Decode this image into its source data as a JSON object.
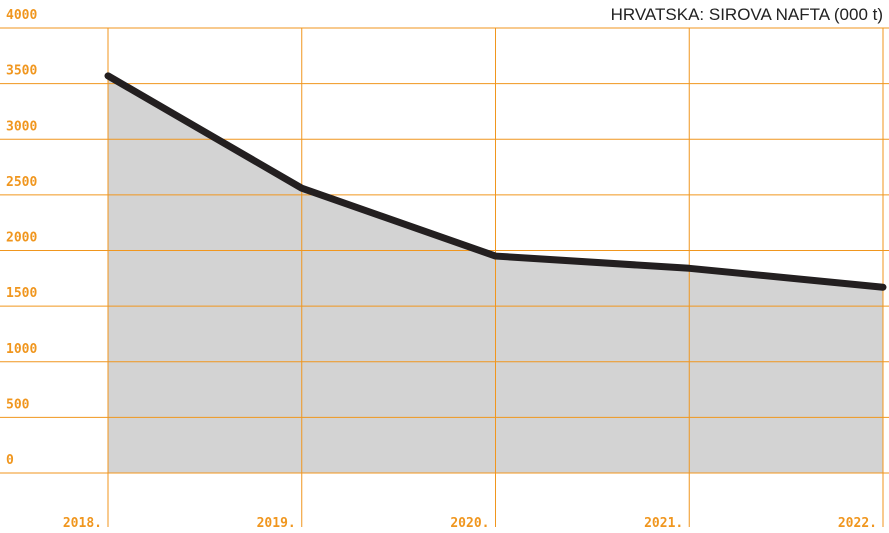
{
  "chart_data": {
    "type": "area",
    "title": "HRVATSKA: SIROVA NAFTA (000 t)",
    "categories": [
      "2018.",
      "2019.",
      "2020.",
      "2021.",
      "2022."
    ],
    "values": [
      3570,
      2560,
      1950,
      1840,
      1670
    ],
    "color": "#231f20",
    "fill": "#d3d3d3",
    "grid_color": "#f0961e",
    "ylim": [
      0,
      4000
    ],
    "yticks": [
      0,
      500,
      1000,
      1500,
      2000,
      2500,
      3000,
      3500,
      4000
    ],
    "grid": true
  }
}
